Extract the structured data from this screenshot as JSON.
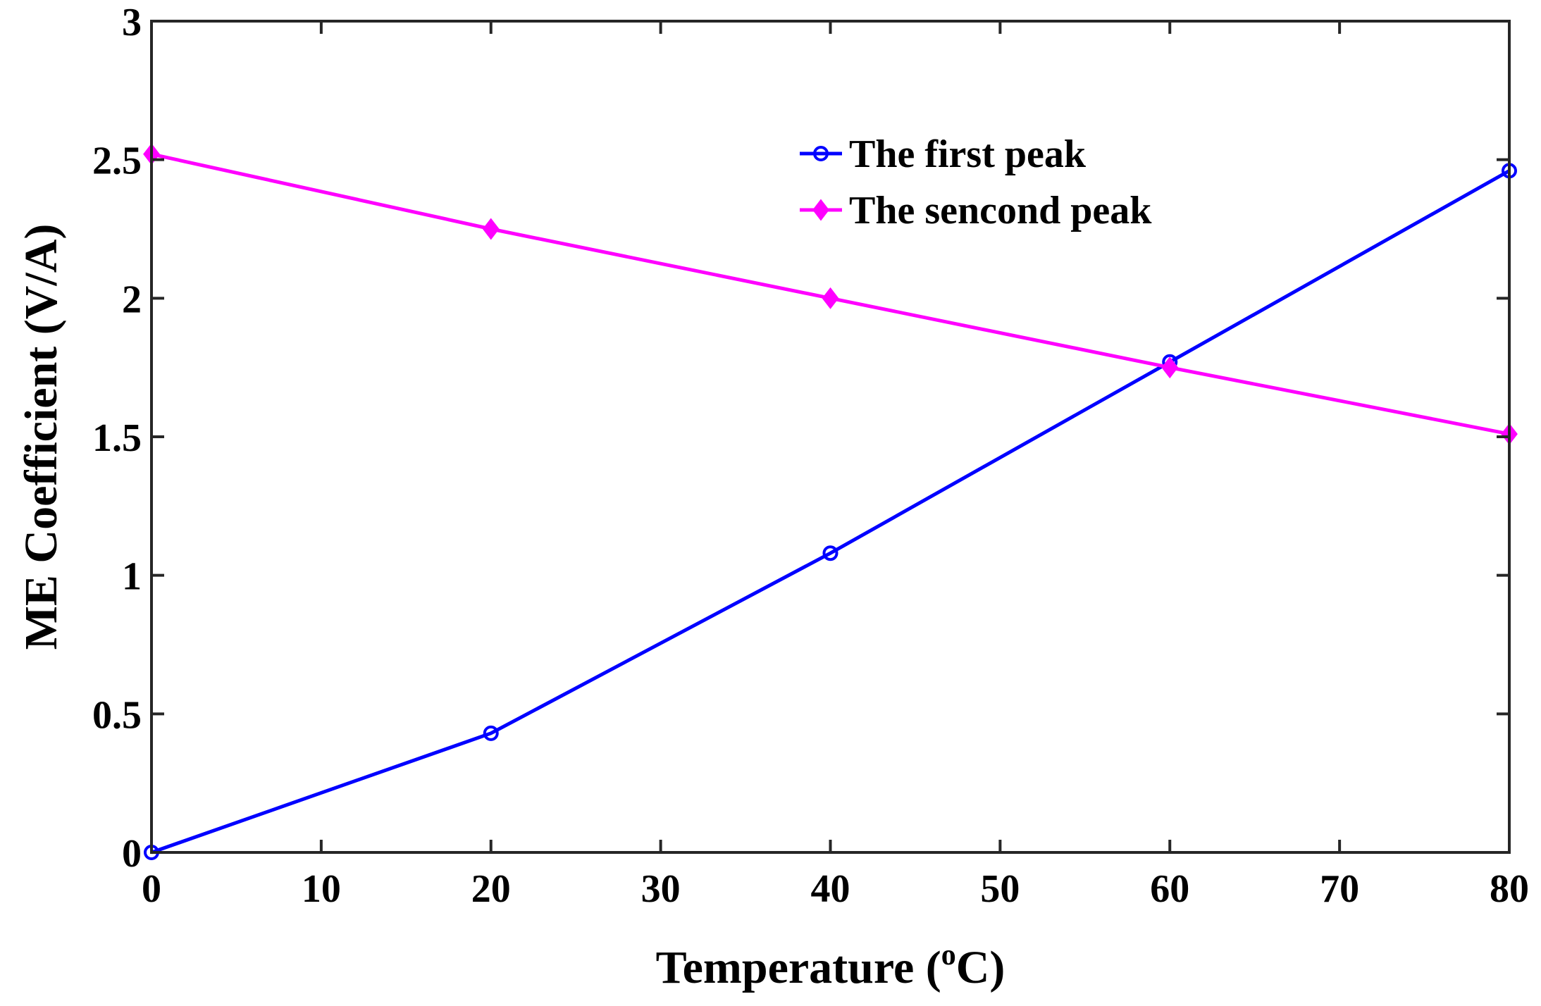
{
  "chart_data": {
    "type": "line",
    "title": "",
    "xlabel": "Temperature (",
    "xlabel_sup": "o",
    "xlabel_suffix": "C)",
    "ylabel": "ME Coefficient (V/A)",
    "xlim": [
      0,
      80
    ],
    "ylim": [
      0,
      3
    ],
    "xticks": [
      0,
      10,
      20,
      30,
      40,
      50,
      60,
      70,
      80
    ],
    "xtick_labels": [
      "0",
      "10",
      "20",
      "30",
      "40",
      "50",
      "60",
      "70",
      "80"
    ],
    "yticks": [
      0,
      0.5,
      1,
      1.5,
      2,
      2.5,
      3
    ],
    "ytick_labels": [
      "0",
      "0.5",
      "1",
      "1.5",
      "2",
      "2.5",
      "3"
    ],
    "grid": false,
    "legend_position": "top-right",
    "x": [
      0,
      20,
      40,
      60,
      80
    ],
    "series": [
      {
        "name": "The first peak",
        "values": [
          0.0,
          0.43,
          1.08,
          1.77,
          2.46
        ],
        "color": "#0000ff",
        "marker": "circle"
      },
      {
        "name": "The sencond peak",
        "values": [
          2.52,
          2.25,
          2.0,
          1.75,
          1.51
        ],
        "color": "#ff00ff",
        "marker": "diamond"
      }
    ]
  }
}
